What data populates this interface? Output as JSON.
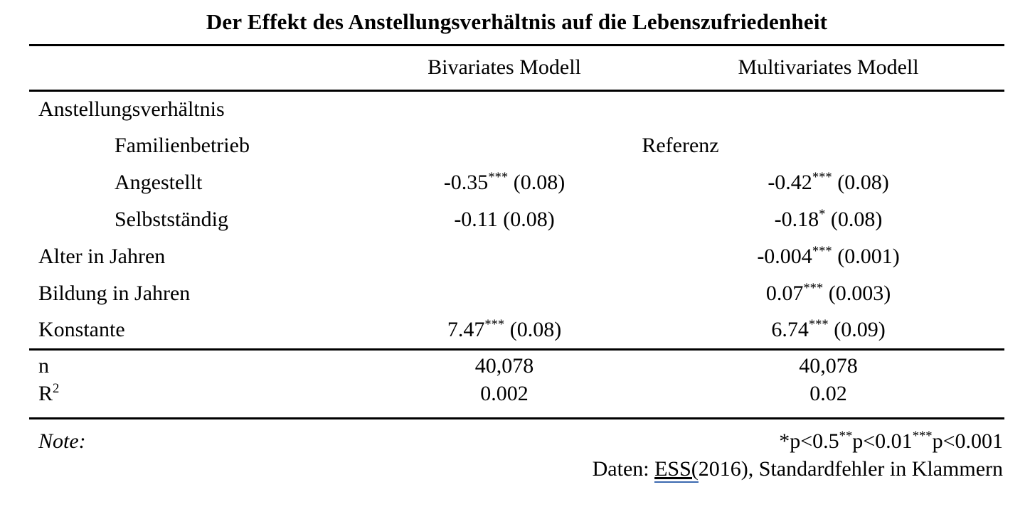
{
  "title": "Der Effekt des Anstellungsverhältnis auf die Lebenszufriedenheit",
  "columns": {
    "bivariate": "Bivariates Modell",
    "multivariate": "Multivariates Modell"
  },
  "rows": [
    {
      "label": "Anstellungsverhältnis",
      "indent": false,
      "biv": {
        "coef": "",
        "stars": "",
        "se": ""
      },
      "multi": {
        "coef": "",
        "stars": "",
        "se": ""
      }
    },
    {
      "label": "Familienbetrieb",
      "indent": true,
      "span_value": "Referenz"
    },
    {
      "label": "Angestellt",
      "indent": true,
      "biv": {
        "coef": "-0.35",
        "stars": "***",
        "se": " (0.08)"
      },
      "multi": {
        "coef": "-0.42",
        "stars": "***",
        "se": " (0.08)"
      }
    },
    {
      "label": "Selbstständig",
      "indent": true,
      "biv": {
        "coef": "-0.11",
        "stars": "",
        "se": " (0.08)"
      },
      "multi": {
        "coef": "-0.18",
        "stars": "*",
        "se": " (0.08)"
      }
    },
    {
      "label": "Alter in Jahren",
      "indent": false,
      "biv": {
        "coef": "",
        "stars": "",
        "se": ""
      },
      "multi": {
        "coef": "-0.004",
        "stars": "***",
        "se": " (0.001)"
      }
    },
    {
      "label": "Bildung in Jahren",
      "indent": false,
      "biv": {
        "coef": "",
        "stars": "",
        "se": ""
      },
      "multi": {
        "coef": "0.07",
        "stars": "***",
        "se": " (0.003)"
      }
    },
    {
      "label": "Konstante",
      "indent": false,
      "biv": {
        "coef": "7.47",
        "stars": "***",
        "se": " (0.08)"
      },
      "multi": {
        "coef": "6.74",
        "stars": "***",
        "se": " (0.09)"
      }
    }
  ],
  "stats": {
    "n_label": "n",
    "n_biv": "40,078",
    "n_multi": "40,078",
    "r2_label": "R",
    "r2_sup": "2",
    "r2_biv": "0.002",
    "r2_multi": "0.02"
  },
  "note": {
    "note_label": "Note:",
    "sig_p1": "*p<0.5",
    "sig_s2": "**",
    "sig_p2": "p<0.01",
    "sig_s3": "***",
    "sig_p3": "p<0.001",
    "data_prefix": "Daten: ",
    "data_link": "ESS(",
    "data_suffix": "2016), Standardfehler in Klammern"
  },
  "colors": {
    "text": "#000000",
    "background": "#ffffff",
    "grammar_underline": "#3c69b0",
    "rule": "#000000"
  }
}
